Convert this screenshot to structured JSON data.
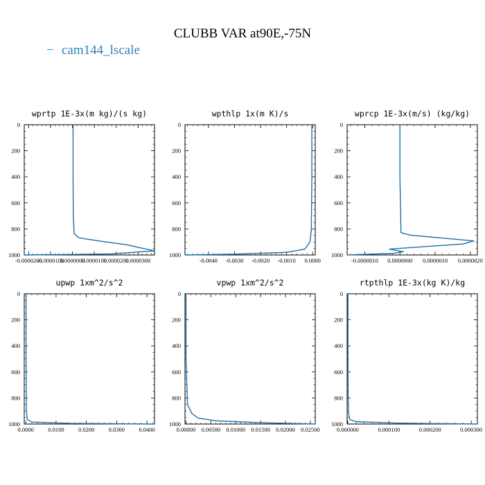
{
  "figure": {
    "title": "CLUBB VAR at90E,-75N",
    "legend": {
      "label": "cam144_lscale",
      "marker": "−",
      "color": "#2e7fb8"
    },
    "line_color": "#1f6fa8"
  },
  "chart_data": [
    {
      "type": "line",
      "title": "wprtp  1E-3x(m kg)/(s kg)",
      "xlim": [
        -2.2e-05,
        3.75e-05
      ],
      "ylim": [
        1000,
        0
      ],
      "xticks": [
        -2e-05,
        -1e-05,
        0,
        1e-05,
        2e-05,
        3e-05
      ],
      "xtick_labels": [
        "-0.0000200",
        "-0.0000100",
        "0.0000000",
        "0.0000100",
        "0.0000200",
        "0.0000300"
      ],
      "yticks": [
        0,
        200,
        400,
        600,
        800,
        1000
      ],
      "ytick_labels": [
        "0",
        "200",
        "400",
        "600",
        "800",
        "1000"
      ],
      "series": [
        {
          "x": [
            3e-07,
            3e-07,
            4e-07,
            8e-07,
            3e-06,
            1.2e-05,
            2.5e-05,
            3.1e-05,
            3.75e-05,
            1.8e-05,
            -2.2e-05
          ],
          "y": [
            0,
            400,
            700,
            838,
            868,
            892,
            922,
            945,
            968,
            992,
            1000
          ]
        }
      ]
    },
    {
      "type": "line",
      "title": "wpthlp  1x(m K)/s",
      "xlim": [
        -0.0049,
        0.0001
      ],
      "ylim": [
        1000,
        0
      ],
      "xticks": [
        -0.004,
        -0.003,
        -0.002,
        -0.001,
        0
      ],
      "xtick_labels": [
        "-0.0040",
        "-0.0030",
        "-0.0020",
        "-0.0010",
        "0.0000"
      ],
      "yticks": [
        0,
        200,
        400,
        600,
        800,
        1000
      ],
      "ytick_labels": [
        "0",
        "200",
        "400",
        "600",
        "800",
        "1000"
      ],
      "series": [
        {
          "x": [
            -3e-05,
            -3e-05,
            -5e-05,
            -0.0001,
            -0.0003,
            -0.001,
            -0.003,
            -0.0049
          ],
          "y": [
            0,
            400,
            800,
            900,
            955,
            980,
            994,
            1000
          ]
        }
      ]
    },
    {
      "type": "line",
      "title": "wprcp  1E-3x(m/s) (kg/kg)",
      "xlim": [
        -1.5e-06,
        2.2e-06
      ],
      "ylim": [
        1000,
        0
      ],
      "xticks": [
        -1e-06,
        0,
        1e-06,
        2e-06
      ],
      "xtick_labels": [
        "-0.0000010",
        "0.0000000",
        "0.0000010",
        "0.0000020"
      ],
      "yticks": [
        0,
        200,
        400,
        600,
        800,
        1000
      ],
      "ytick_labels": [
        "0",
        "200",
        "400",
        "600",
        "800",
        "1000"
      ],
      "series": [
        {
          "x": [
            0,
            0,
            3e-08,
            3e-07,
            1.2e-06,
            2.1e-06,
            1.8e-06,
            -3e-07,
            1e-07,
            -2e-07,
            -1.5e-06
          ],
          "y": [
            0,
            400,
            828,
            848,
            870,
            892,
            915,
            955,
            975,
            988,
            1000
          ]
        }
      ]
    },
    {
      "type": "line",
      "title": "upwp  1xm^2/s^2",
      "xlim": [
        -0.0005,
        0.0425
      ],
      "ylim": [
        1000,
        0
      ],
      "xticks": [
        0,
        0.01,
        0.02,
        0.03,
        0.04
      ],
      "xtick_labels": [
        "0.0000",
        "0.0100",
        "0.0200",
        "0.0300",
        "0.0400"
      ],
      "yticks": [
        0,
        200,
        400,
        600,
        800,
        1000
      ],
      "ytick_labels": [
        "0",
        "200",
        "400",
        "600",
        "800",
        "1000"
      ],
      "series": [
        {
          "x": [
            0.0001,
            0.0001,
            0.0002,
            0.0005,
            0.002,
            0.015,
            0.042
          ],
          "y": [
            0,
            500,
            900,
            965,
            985,
            995,
            1000
          ]
        }
      ]
    },
    {
      "type": "line",
      "title": "vpwp  1xm^2/s^2",
      "xlim": [
        -0.0002,
        0.026
      ],
      "ylim": [
        1000,
        0
      ],
      "xticks": [
        0,
        0.005,
        0.01,
        0.015,
        0.02,
        0.025
      ],
      "xtick_labels": [
        "0.00000",
        "0.00500",
        "0.01000",
        "0.01500",
        "0.02000",
        "0.02500"
      ],
      "yticks": [
        0,
        200,
        400,
        600,
        800,
        1000
      ],
      "ytick_labels": [
        "0",
        "200",
        "400",
        "600",
        "800",
        "1000"
      ],
      "series": [
        {
          "x": [
            0,
            0,
            0.0003,
            0.0012,
            0.0025,
            0.006,
            0.015,
            0.026
          ],
          "y": [
            0,
            500,
            850,
            920,
            955,
            975,
            990,
            1000
          ]
        }
      ]
    },
    {
      "type": "line",
      "title": "rtpthlp  1E-3x(kg K)/kg",
      "xlim": [
        -1.5e-06,
        0.000315
      ],
      "ylim": [
        1000,
        0
      ],
      "xticks": [
        0,
        0.0001,
        0.0002,
        0.0003
      ],
      "xtick_labels": [
        "0.000000",
        "0.000100",
        "0.000200",
        "0.000300"
      ],
      "yticks": [
        0,
        200,
        400,
        600,
        800,
        1000
      ],
      "ytick_labels": [
        "0",
        "200",
        "400",
        "600",
        "800",
        "1000"
      ],
      "series": [
        {
          "x": [
            5e-07,
            5e-07,
            1e-06,
            2e-06,
            5e-06,
            2e-05,
            0.00012,
            0.000315
          ],
          "y": [
            0,
            400,
            800,
            920,
            965,
            982,
            993,
            1000
          ]
        }
      ]
    }
  ]
}
